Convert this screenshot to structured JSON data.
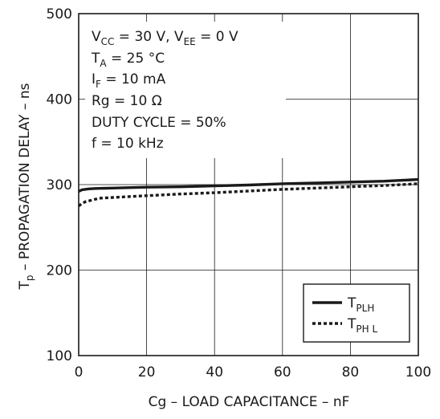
{
  "chart_data": {
    "type": "line",
    "xlabel": "Cg – LOAD CAPACITANCE – nF",
    "ylabel": {
      "main": "T",
      "sub": "p",
      "rest": " – PROPAGATION DELAY – ns"
    },
    "xlim": [
      0,
      100
    ],
    "ylim": [
      100,
      500
    ],
    "x_ticks": [
      "0",
      "20",
      "40",
      "60",
      "80",
      "100"
    ],
    "y_ticks": [
      "100",
      "200",
      "300",
      "400",
      "500"
    ],
    "grid": true,
    "conditions": [
      {
        "main": "V",
        "sub": "CC",
        "rest": " = 30 V,  V",
        "sub2": "EE",
        "rest2": " = 0  V"
      },
      {
        "main": "T",
        "sub": "A",
        "rest": " = 25 °C"
      },
      {
        "main": "I",
        "sub": "F",
        "rest": " = 10 mA"
      },
      {
        "main": "Rg = 10   Ω"
      },
      {
        "main": "DUTY CYCLE = 50%"
      },
      {
        "main": "f = 10 kHz"
      }
    ],
    "legend_position": "bottom-right",
    "series": [
      {
        "name": "T",
        "name_sub": "PLH",
        "style": "solid",
        "color": "#1a1a1a",
        "x": [
          0,
          1,
          3,
          5,
          10,
          20,
          30,
          40,
          50,
          60,
          70,
          80,
          90,
          100
        ],
        "y": [
          292,
          294,
          295,
          295.5,
          296,
          297,
          297.5,
          298.5,
          299.5,
          301,
          302,
          303,
          304,
          306
        ]
      },
      {
        "name": "T",
        "name_sub": "PH L",
        "style": "dotted",
        "color": "#1a1a1a",
        "x": [
          0,
          1,
          2,
          4,
          6,
          10,
          20,
          30,
          40,
          50,
          60,
          70,
          80,
          90,
          100
        ],
        "y": [
          275,
          278,
          280,
          282,
          284,
          285,
          287,
          289,
          290.5,
          292.5,
          294.5,
          296,
          297.5,
          299,
          301
        ]
      }
    ]
  }
}
